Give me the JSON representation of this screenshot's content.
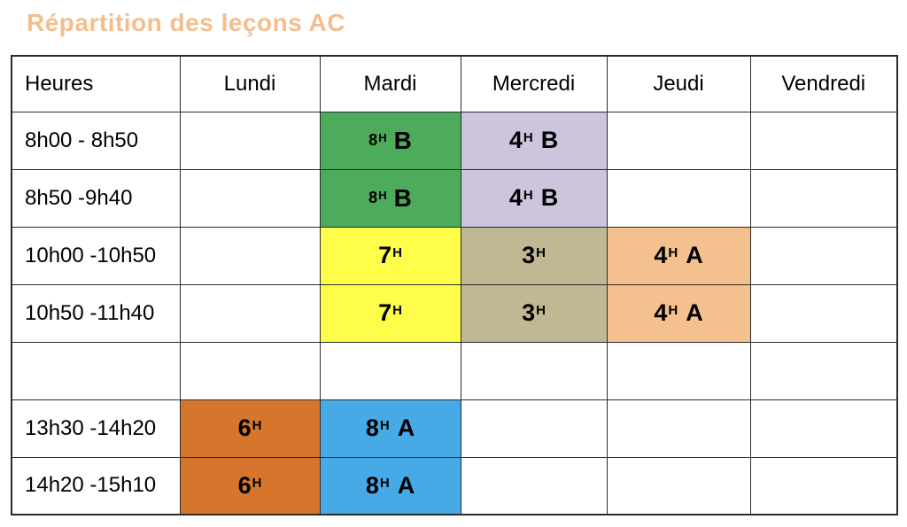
{
  "title": "Répartition des leçons AC",
  "colors": {
    "title": "#f4be8c",
    "border": "#2b2b2b",
    "text": "#000000",
    "green": "#4dab5c",
    "lavender": "#ccc5dc",
    "yellow": "#fdfd4a",
    "khaki": "#bfb893",
    "peach": "#f3c08e",
    "orange": "#d6762c",
    "blue": "#47a9e6"
  },
  "table": {
    "columns": [
      "Heures",
      "Lundi",
      "Mardi",
      "Mercredi",
      "Jeudi",
      "Vendredi"
    ],
    "rows": [
      {
        "time": "8h00 - 8h50",
        "cells": [
          null,
          {
            "hours": "8",
            "suffix": "H",
            "group": "B",
            "color": "green",
            "small": true
          },
          {
            "hours": "4",
            "suffix": "H",
            "group": "B",
            "color": "lavender"
          },
          null,
          null
        ]
      },
      {
        "time": "8h50 -9h40",
        "cells": [
          null,
          {
            "hours": "8",
            "suffix": "H",
            "group": "B",
            "color": "green",
            "small": true
          },
          {
            "hours": "4",
            "suffix": "H",
            "group": "B",
            "color": "lavender"
          },
          null,
          null
        ]
      },
      {
        "time": "10h00 -10h50",
        "cells": [
          null,
          {
            "hours": "7",
            "suffix": "H",
            "group": "",
            "color": "yellow"
          },
          {
            "hours": "3",
            "suffix": "H",
            "group": "",
            "color": "khaki"
          },
          {
            "hours": "4",
            "suffix": "H",
            "group": "A",
            "color": "peach"
          },
          null
        ]
      },
      {
        "time": "10h50 -11h40",
        "cells": [
          null,
          {
            "hours": "7",
            "suffix": "H",
            "group": "",
            "color": "yellow"
          },
          {
            "hours": "3",
            "suffix": "H",
            "group": "",
            "color": "khaki"
          },
          {
            "hours": "4",
            "suffix": "H",
            "group": "A",
            "color": "peach"
          },
          null
        ]
      },
      {
        "time": "",
        "cells": [
          null,
          null,
          null,
          null,
          null
        ]
      },
      {
        "time": "13h30 -14h20",
        "cells": [
          {
            "hours": "6",
            "suffix": "H",
            "group": "",
            "color": "orange"
          },
          {
            "hours": "8",
            "suffix": "H",
            "group": "A",
            "color": "blue"
          },
          null,
          null,
          null
        ]
      },
      {
        "time": "14h20 -15h10",
        "cells": [
          {
            "hours": "6",
            "suffix": "H",
            "group": "",
            "color": "orange"
          },
          {
            "hours": "8",
            "suffix": "H",
            "group": "A",
            "color": "blue"
          },
          null,
          null,
          null
        ]
      }
    ]
  }
}
